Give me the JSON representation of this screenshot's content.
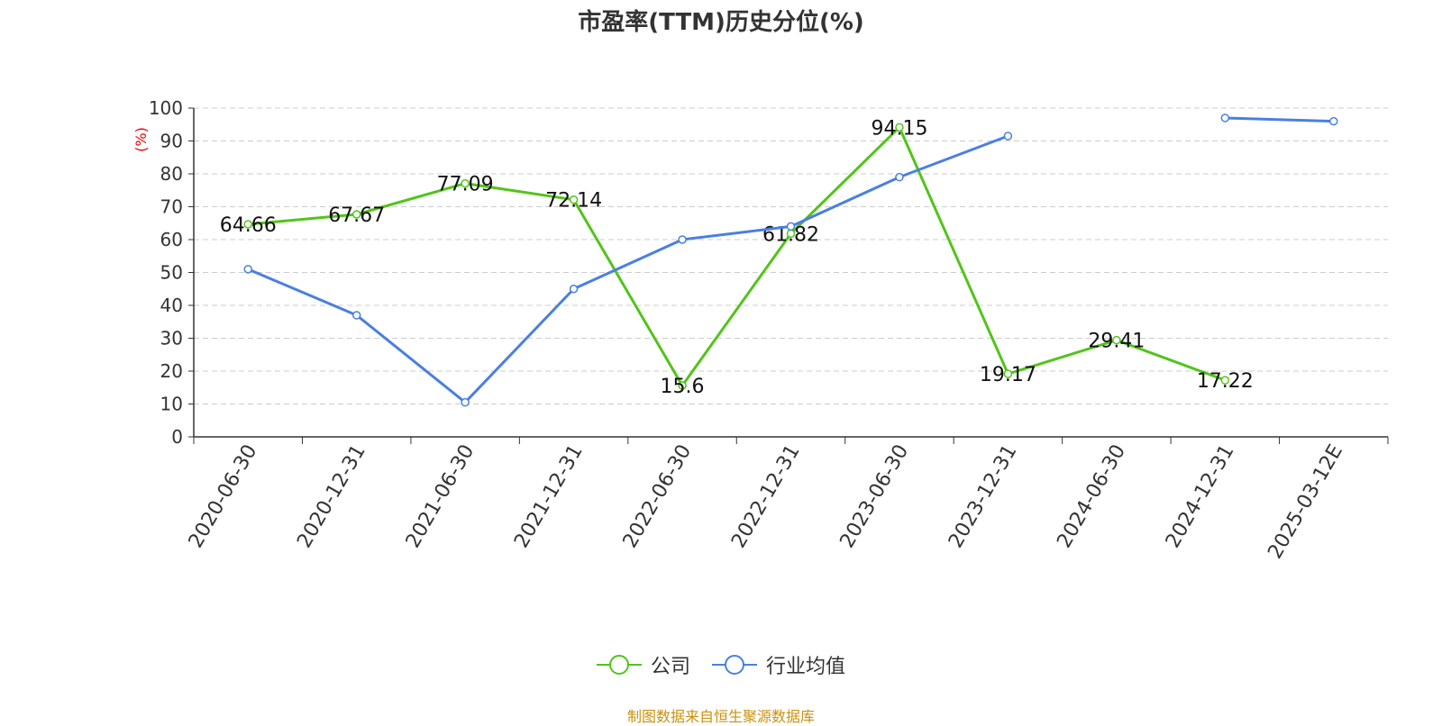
{
  "title": "市盈率(TTM)历史分位(%)",
  "source": "制图数据来自恒生聚源数据库",
  "colors": {
    "company": "#52c41a",
    "industry": "#4a7fe0",
    "grid": "#cccccc",
    "axis": "#333333",
    "unit": "#e60000",
    "source": "#c8920e"
  },
  "chart_data": {
    "type": "line",
    "title": "市盈率(TTM)历史分位(%)",
    "ylabel": "(%)",
    "xlabel": "",
    "ylim": [
      0,
      100
    ],
    "yticks": [
      0,
      10,
      20,
      30,
      40,
      50,
      60,
      70,
      80,
      90,
      100
    ],
    "grid": true,
    "legend_position": "bottom",
    "categories": [
      "2020-06-30",
      "2020-12-31",
      "2021-06-30",
      "2021-12-31",
      "2022-06-30",
      "2022-12-31",
      "2023-06-30",
      "2023-12-31",
      "2024-06-30",
      "2024-12-31",
      "2025-03-12E"
    ],
    "series": [
      {
        "name": "公司",
        "values": [
          64.66,
          67.67,
          77.09,
          72.14,
          15.6,
          61.82,
          94.15,
          19.17,
          29.41,
          17.22,
          null
        ],
        "labels": [
          "64.66",
          "67.67",
          "77.09",
          "72.14",
          "15.6",
          "61.82",
          "94.15",
          "19.17",
          "29.41",
          "17.22",
          ""
        ]
      },
      {
        "name": "行业均值",
        "values": [
          51,
          37,
          10.5,
          45,
          60,
          64,
          79,
          91.5,
          null,
          97,
          96
        ]
      }
    ]
  }
}
